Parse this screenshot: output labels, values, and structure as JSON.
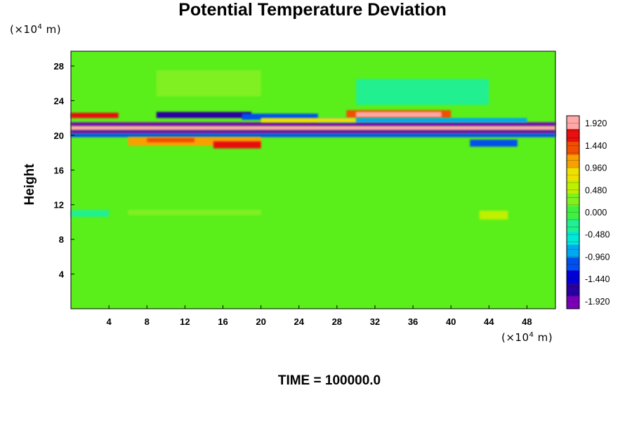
{
  "chart_data": {
    "type": "heatmap",
    "title": "Potential Temperature Deviation",
    "ylabel": "Height",
    "unit_prefix": "(×10",
    "unit_exp": "4",
    "unit_suffix": " m)",
    "time_label": "TIME = 100000.0",
    "xlim": [
      0,
      51
    ],
    "ylim": [
      0,
      29.7
    ],
    "x_ticks": [
      4,
      8,
      12,
      16,
      20,
      24,
      28,
      32,
      36,
      40,
      44,
      48
    ],
    "y_ticks": [
      4,
      8,
      12,
      16,
      20,
      24,
      28
    ],
    "colorbar_range": [
      -2.08,
      2.08
    ],
    "colorbar_tick_values": [
      1.92,
      1.44,
      0.96,
      0.48,
      0.0,
      -0.48,
      -0.96,
      -1.44,
      -1.92
    ],
    "colorbar_tick_labels": [
      "1.920",
      "1.440",
      "0.960",
      "0.480",
      "0.000",
      "-0.480",
      "-0.960",
      "-1.440",
      "-1.920"
    ],
    "colors": {
      "background": "#5aef1a",
      "strong_positive": "#ffa8a8",
      "strong_negative": "#7a00b8",
      "frame": "#000000"
    },
    "colormap": [
      "#7a00b8",
      "#2a00a0",
      "#0000d8",
      "#0050f0",
      "#00a8f0",
      "#00e8d8",
      "#20f090",
      "#40f040",
      "#80f020",
      "#c0f000",
      "#f0e000",
      "#f8a000",
      "#f05000",
      "#e81010",
      "#ffa8a8"
    ],
    "features": [
      {
        "x0": 0,
        "x1": 51,
        "y0": 20.6,
        "y1": 21.1,
        "value": 2.0
      },
      {
        "x0": 0,
        "x1": 51,
        "y0": 20.2,
        "y1": 20.6,
        "value": -2.0
      },
      {
        "x0": 0,
        "x1": 51,
        "y0": 21.1,
        "y1": 21.5,
        "value": -1.9
      },
      {
        "x0": 0,
        "x1": 51,
        "y0": 19.8,
        "y1": 20.2,
        "value": -1.0
      },
      {
        "x0": 29,
        "x1": 40,
        "y0": 22.0,
        "y1": 22.9,
        "value": 1.4
      },
      {
        "x0": 30,
        "x1": 39,
        "y0": 22.1,
        "y1": 22.7,
        "value": 1.92
      },
      {
        "x0": 26,
        "x1": 48,
        "y0": 21.5,
        "y1": 22.0,
        "value": -0.9
      },
      {
        "x0": 9,
        "x1": 19,
        "y0": 22.0,
        "y1": 22.7,
        "value": -1.7
      },
      {
        "x0": 18,
        "x1": 26,
        "y0": 21.8,
        "y1": 22.5,
        "value": -1.1
      },
      {
        "x0": 0,
        "x1": 5,
        "y0": 22.0,
        "y1": 22.6,
        "value": 1.6
      },
      {
        "x0": 6,
        "x1": 20,
        "y0": 18.8,
        "y1": 19.8,
        "value": 1.2
      },
      {
        "x0": 15,
        "x1": 20,
        "y0": 18.5,
        "y1": 19.3,
        "value": 1.7
      },
      {
        "x0": 8,
        "x1": 13,
        "y0": 19.2,
        "y1": 19.7,
        "value": 1.5
      },
      {
        "x0": 42,
        "x1": 47,
        "y0": 18.7,
        "y1": 19.5,
        "value": -1.0
      },
      {
        "x0": 30,
        "x1": 44,
        "y0": 23.5,
        "y1": 26.5,
        "value": -0.25
      },
      {
        "x0": 9,
        "x1": 20,
        "y0": 24.5,
        "y1": 27.5,
        "value": 0.3
      },
      {
        "x0": 43,
        "x1": 46,
        "y0": 10.3,
        "y1": 11.3,
        "value": 0.45
      },
      {
        "x0": 6,
        "x1": 20,
        "y0": 10.8,
        "y1": 11.4,
        "value": 0.25
      },
      {
        "x0": 0,
        "x1": 4,
        "y0": 10.6,
        "y1": 11.4,
        "value": -0.2
      },
      {
        "x0": 20,
        "x1": 30,
        "y0": 21.5,
        "y1": 22.0,
        "value": 0.9
      }
    ]
  }
}
